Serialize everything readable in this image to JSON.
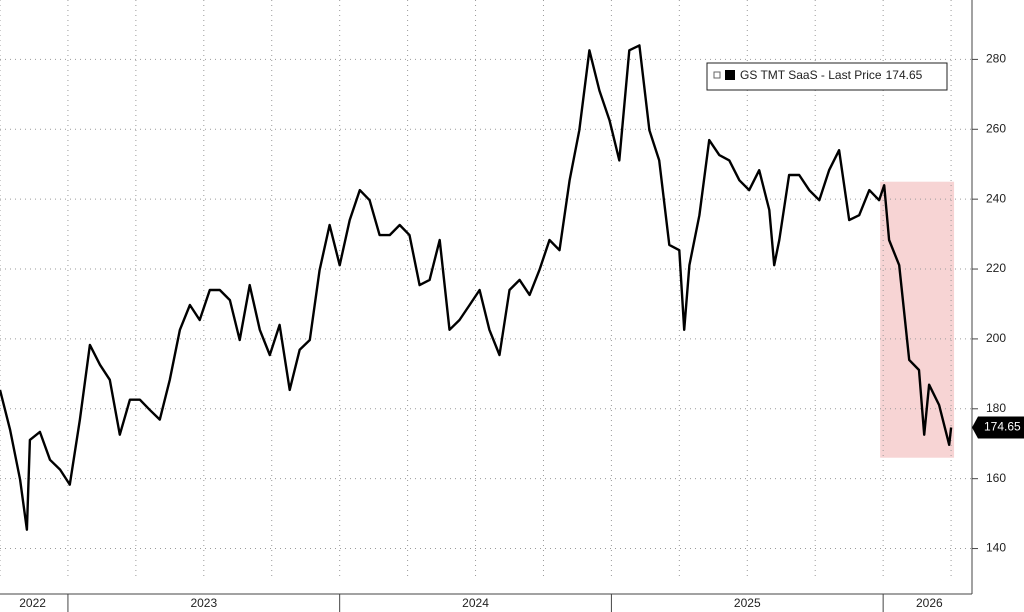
{
  "chart_data": {
    "type": "line",
    "x": [
      2022.75,
      2022.787,
      2022.824,
      2022.849,
      2022.86,
      2022.897,
      2022.934,
      2022.971,
      2023.007,
      2023.044,
      2023.081,
      2023.118,
      2023.154,
      2023.191,
      2023.228,
      2023.265,
      2023.301,
      2023.338,
      2023.375,
      2023.412,
      2023.449,
      2023.485,
      2023.522,
      2023.559,
      2023.596,
      2023.632,
      2023.669,
      2023.706,
      2023.743,
      2023.779,
      2023.816,
      2023.853,
      2023.89,
      2023.926,
      2023.963,
      2024.0,
      2024.037,
      2024.074,
      2024.11,
      2024.147,
      2024.184,
      2024.221,
      2024.257,
      2024.294,
      2024.331,
      2024.368,
      2024.404,
      2024.441,
      2024.478,
      2024.515,
      2024.551,
      2024.588,
      2024.625,
      2024.662,
      2024.699,
      2024.735,
      2024.772,
      2024.809,
      2024.846,
      2024.882,
      2024.919,
      2024.956,
      2024.993,
      2025.029,
      2025.066,
      2025.103,
      2025.14,
      2025.176,
      2025.213,
      2025.25,
      2025.268,
      2025.287,
      2025.324,
      2025.36,
      2025.397,
      2025.434,
      2025.471,
      2025.507,
      2025.544,
      2025.581,
      2025.599,
      2025.618,
      2025.654,
      2025.691,
      2025.728,
      2025.765,
      2025.801,
      2025.838,
      2025.875,
      2025.912,
      2025.949,
      2025.985,
      2026.004,
      2026.022,
      2026.059,
      2026.096,
      2026.132,
      2026.151,
      2026.169,
      2026.206,
      2026.243,
      2026.25
    ],
    "series": [
      {
        "name": "GS TMT SaaS - Last Price",
        "color": "#000000",
        "values": [
          185.4,
          174.0,
          159.7,
          145.4,
          171.1,
          173.4,
          165.4,
          162.6,
          158.3,
          176.9,
          198.3,
          192.6,
          188.3,
          172.6,
          182.6,
          182.6,
          179.7,
          176.9,
          188.3,
          202.6,
          209.7,
          205.4,
          214.0,
          214.0,
          211.1,
          199.7,
          215.4,
          202.6,
          195.4,
          204.0,
          185.4,
          196.9,
          199.7,
          219.7,
          232.6,
          221.1,
          234.0,
          242.6,
          239.7,
          229.7,
          229.7,
          232.6,
          229.7,
          215.4,
          216.9,
          228.3,
          202.6,
          205.4,
          209.7,
          214.0,
          202.6,
          195.4,
          214.0,
          216.9,
          212.6,
          219.7,
          228.3,
          225.4,
          245.4,
          259.7,
          282.6,
          271.1,
          262.6,
          251.1,
          282.6,
          284.0,
          259.7,
          251.1,
          226.9,
          225.4,
          202.6,
          221.1,
          235.4,
          256.9,
          252.6,
          251.1,
          245.4,
          242.6,
          248.3,
          236.9,
          221.1,
          228.3,
          246.9,
          246.9,
          242.6,
          239.7,
          248.3,
          254.0,
          234.0,
          235.4,
          242.6,
          239.7,
          244.0,
          228.3,
          221.1,
          194.0,
          191.1,
          172.6,
          186.9,
          181.1,
          169.7,
          174.65
        ]
      }
    ],
    "xlim": [
      2022.75,
      2026.327
    ],
    "xticks": [
      {
        "value": 2022.87,
        "label": "2022"
      },
      {
        "value": 2023.5,
        "label": "2023"
      },
      {
        "value": 2024.5,
        "label": "2024"
      },
      {
        "value": 2025.5,
        "label": "2025"
      },
      {
        "value": 2026.17,
        "label": "2026"
      }
    ],
    "ylim": [
      131,
      297
    ],
    "yticks": [
      140,
      160,
      180,
      200,
      220,
      240,
      260,
      280
    ],
    "grid": true,
    "highlight": {
      "x": [
        2025.989,
        2026.261
      ],
      "y": [
        166,
        245
      ],
      "color": "#f6cccc"
    }
  }
}
